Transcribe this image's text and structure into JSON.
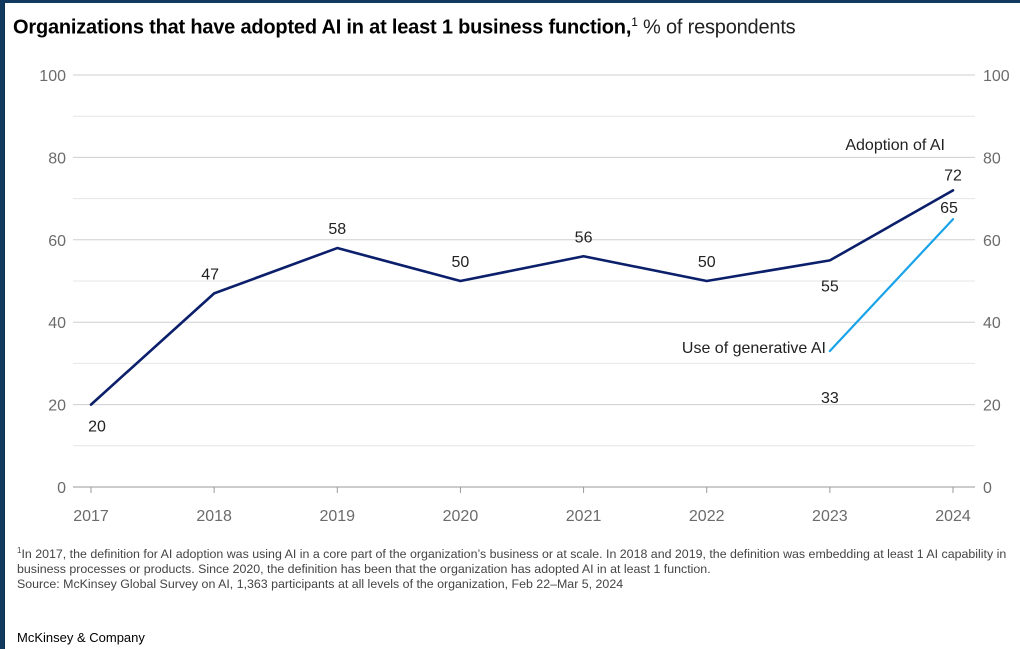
{
  "title": {
    "main": "Organizations that have adopted AI in at least 1 business function,",
    "sup": "1",
    "unit": "% of respondents"
  },
  "chart_data": {
    "type": "line",
    "x": [
      "2017",
      "2018",
      "2019",
      "2020",
      "2021",
      "2022",
      "2023",
      "2024"
    ],
    "ylim": [
      0,
      100
    ],
    "yticks": [
      0,
      20,
      40,
      60,
      80,
      100
    ],
    "y_axis": "both sides",
    "grid": true,
    "series": [
      {
        "name": "Adoption of AI",
        "color": "#0b1f6b",
        "x": [
          "2017",
          "2018",
          "2019",
          "2020",
          "2021",
          "2022",
          "2023",
          "2024"
        ],
        "values": [
          20,
          47,
          58,
          50,
          56,
          50,
          55,
          72
        ]
      },
      {
        "name": "Use of generative AI",
        "color": "#1aa3e8",
        "x": [
          "2023",
          "2024"
        ],
        "values": [
          33,
          65
        ]
      }
    ]
  },
  "footnote": {
    "sup": "1",
    "text": "In 2017, the definition for AI adoption was using AI in a core part of the organization’s business or at scale. In 2018 and 2019, the definition was embedding at least 1 AI capability in business processes or products. Since 2020, the definition has been that the organization has adopted AI in at least 1 function.",
    "source": "Source: McKinsey Global Survey on AI, 1,363 participants at all levels of the organization, Feb 22–Mar 5, 2024"
  },
  "brand": "McKinsey & Company"
}
